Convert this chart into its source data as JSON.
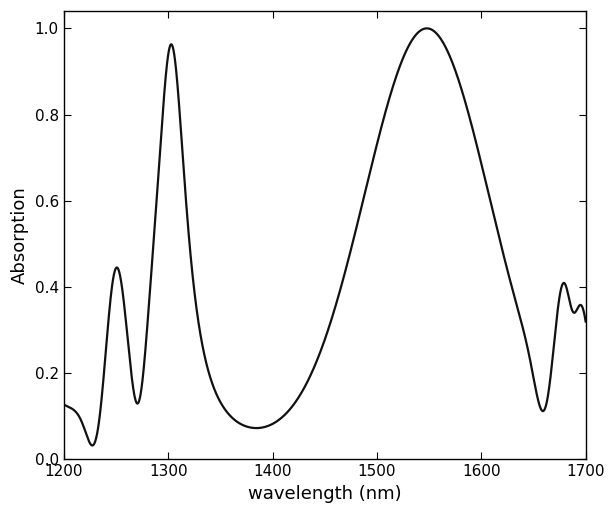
{
  "title": "",
  "xlabel": "wavelength (nm)",
  "ylabel": "Absorption",
  "xlim": [
    1200,
    1700
  ],
  "ylim": [
    0.0,
    1.04
  ],
  "xticks": [
    1200,
    1300,
    1400,
    1500,
    1600,
    1700
  ],
  "yticks": [
    0.0,
    0.2,
    0.4,
    0.6,
    0.8,
    1.0
  ],
  "line_color": "#111111",
  "line_width": 1.6,
  "background_color": "#ffffff",
  "xlabel_fontsize": 13,
  "ylabel_fontsize": 13,
  "tick_fontsize": 11
}
